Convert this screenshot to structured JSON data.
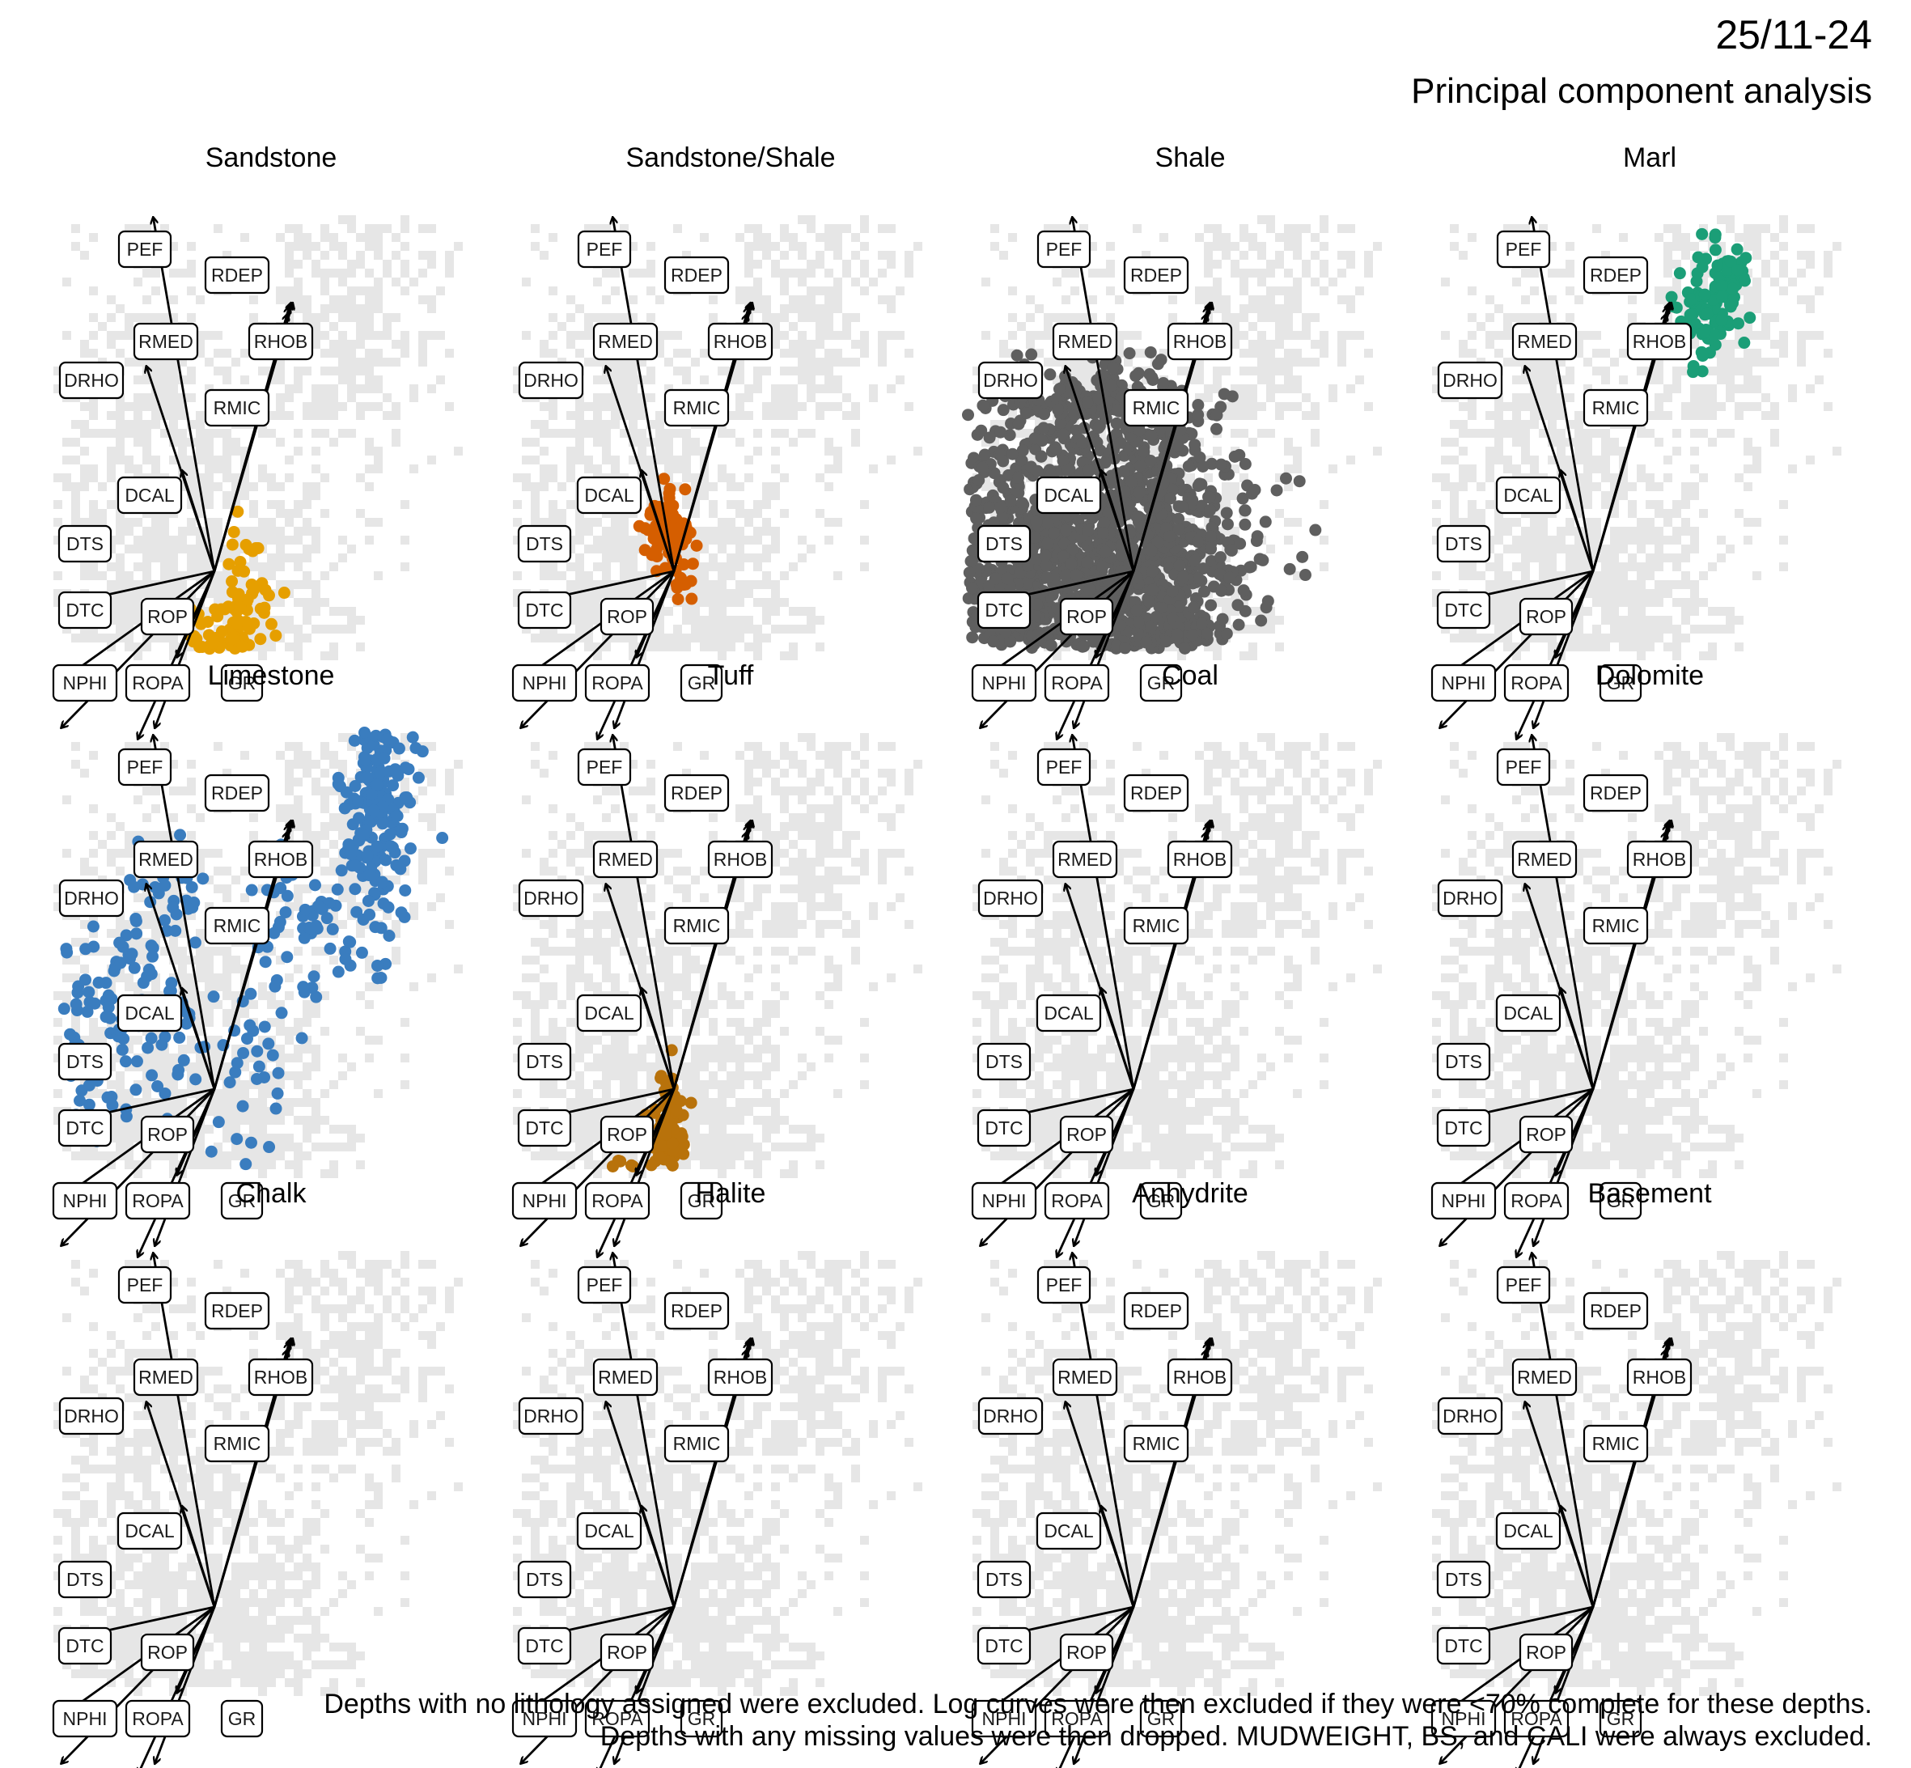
{
  "date": "25/11-24",
  "title": "Principal component analysis",
  "footnote": [
    "Depths with no lithology assigned were excluded. Log curves were then excluded if they were <70% complete for these depths.",
    "Depths with any missing values were then dropped. MUDWEIGHT, BS, and CALI were always excluded."
  ],
  "chart_data": {
    "type": "scatter",
    "plot_kind": "PCA biplot, small multiples by lithology",
    "background": "all observations shown as grey binned points in every panel",
    "grid": false,
    "variables": [
      "PEF",
      "RDEP",
      "RMED",
      "RHOB",
      "DRHO",
      "RMIC",
      "DCAL",
      "DTS",
      "DTC",
      "ROP",
      "NPHI",
      "ROPA",
      "GR"
    ],
    "loadings": {
      "PEF": [
        -0.36,
        0.95
      ],
      "RDEP": [
        0.45,
        0.72
      ],
      "RMED": [
        0.44,
        0.71
      ],
      "RHOB": [
        0.46,
        0.72
      ],
      "DRHO": [
        -0.4,
        0.55
      ],
      "RMIC": [
        0.43,
        0.69
      ],
      "DCAL": [
        -0.19,
        0.27
      ],
      "DTS": [
        -0.9,
        -0.09
      ],
      "DTC": [
        -0.92,
        -0.3
      ],
      "ROP": [
        -0.22,
        -0.23
      ],
      "NPHI": [
        -0.9,
        -0.42
      ],
      "ROPA": [
        -0.45,
        -0.45
      ],
      "GR": [
        -0.35,
        -0.42
      ]
    },
    "panels": [
      {
        "name": "Sandstone",
        "color": "#E69F00",
        "clusters": [
          [
            0.06,
            -0.3,
            0.13,
            0.1,
            320
          ],
          [
            0.17,
            -0.05,
            0.08,
            0.1,
            40
          ],
          [
            -0.05,
            -0.55,
            0.05,
            0.03,
            30
          ]
        ]
      },
      {
        "name": "Sandstone/Shale",
        "color": "#D55E00",
        "clusters": [
          [
            -0.05,
            0.1,
            0.07,
            0.05,
            80
          ],
          [
            0.05,
            -0.05,
            0.03,
            0.03,
            10
          ]
        ]
      },
      {
        "name": "Shale",
        "color": "#5F5F5F",
        "clusters": [
          [
            -0.4,
            0.0,
            0.45,
            0.22,
            1400
          ],
          [
            -0.2,
            0.45,
            0.3,
            0.06,
            120
          ],
          [
            0.15,
            -0.05,
            0.28,
            0.22,
            500
          ],
          [
            0.1,
            0.35,
            0.1,
            0.07,
            30
          ]
        ]
      },
      {
        "name": "Marl",
        "color": "#1B9E77",
        "clusters": [
          [
            0.68,
            0.7,
            0.1,
            0.07,
            90
          ],
          [
            0.82,
            0.82,
            0.06,
            0.04,
            30
          ]
        ]
      },
      {
        "name": "Limestone",
        "color": "#3A7DBF",
        "clusters": [
          [
            0.95,
            0.78,
            0.1,
            0.2,
            220
          ],
          [
            0.6,
            0.45,
            0.2,
            0.1,
            60
          ],
          [
            0.25,
            0.02,
            0.12,
            0.15,
            35
          ],
          [
            -0.55,
            0.2,
            0.18,
            0.14,
            110
          ],
          [
            -0.3,
            0.55,
            0.12,
            0.06,
            30
          ]
        ]
      },
      {
        "name": "Tuff",
        "color": "#B8720B",
        "clusters": [
          [
            -0.03,
            -0.1,
            0.06,
            0.07,
            90
          ],
          [
            -0.22,
            -0.25,
            0.12,
            0.05,
            30
          ]
        ]
      },
      {
        "name": "Coal",
        "color": "#5F5F5F",
        "clusters": [
          [
            -0.1,
            -0.72,
            0.02,
            0.01,
            2
          ]
        ]
      },
      {
        "name": "Dolomite",
        "color": "#888888",
        "clusters": []
      },
      {
        "name": "Chalk",
        "color": "#888888",
        "clusters": []
      },
      {
        "name": "Halite",
        "color": "#888888",
        "clusters": []
      },
      {
        "name": "Anhydrite",
        "color": "#888888",
        "clusters": []
      },
      {
        "name": "Basement",
        "color": "#888888",
        "clusters": []
      }
    ]
  }
}
